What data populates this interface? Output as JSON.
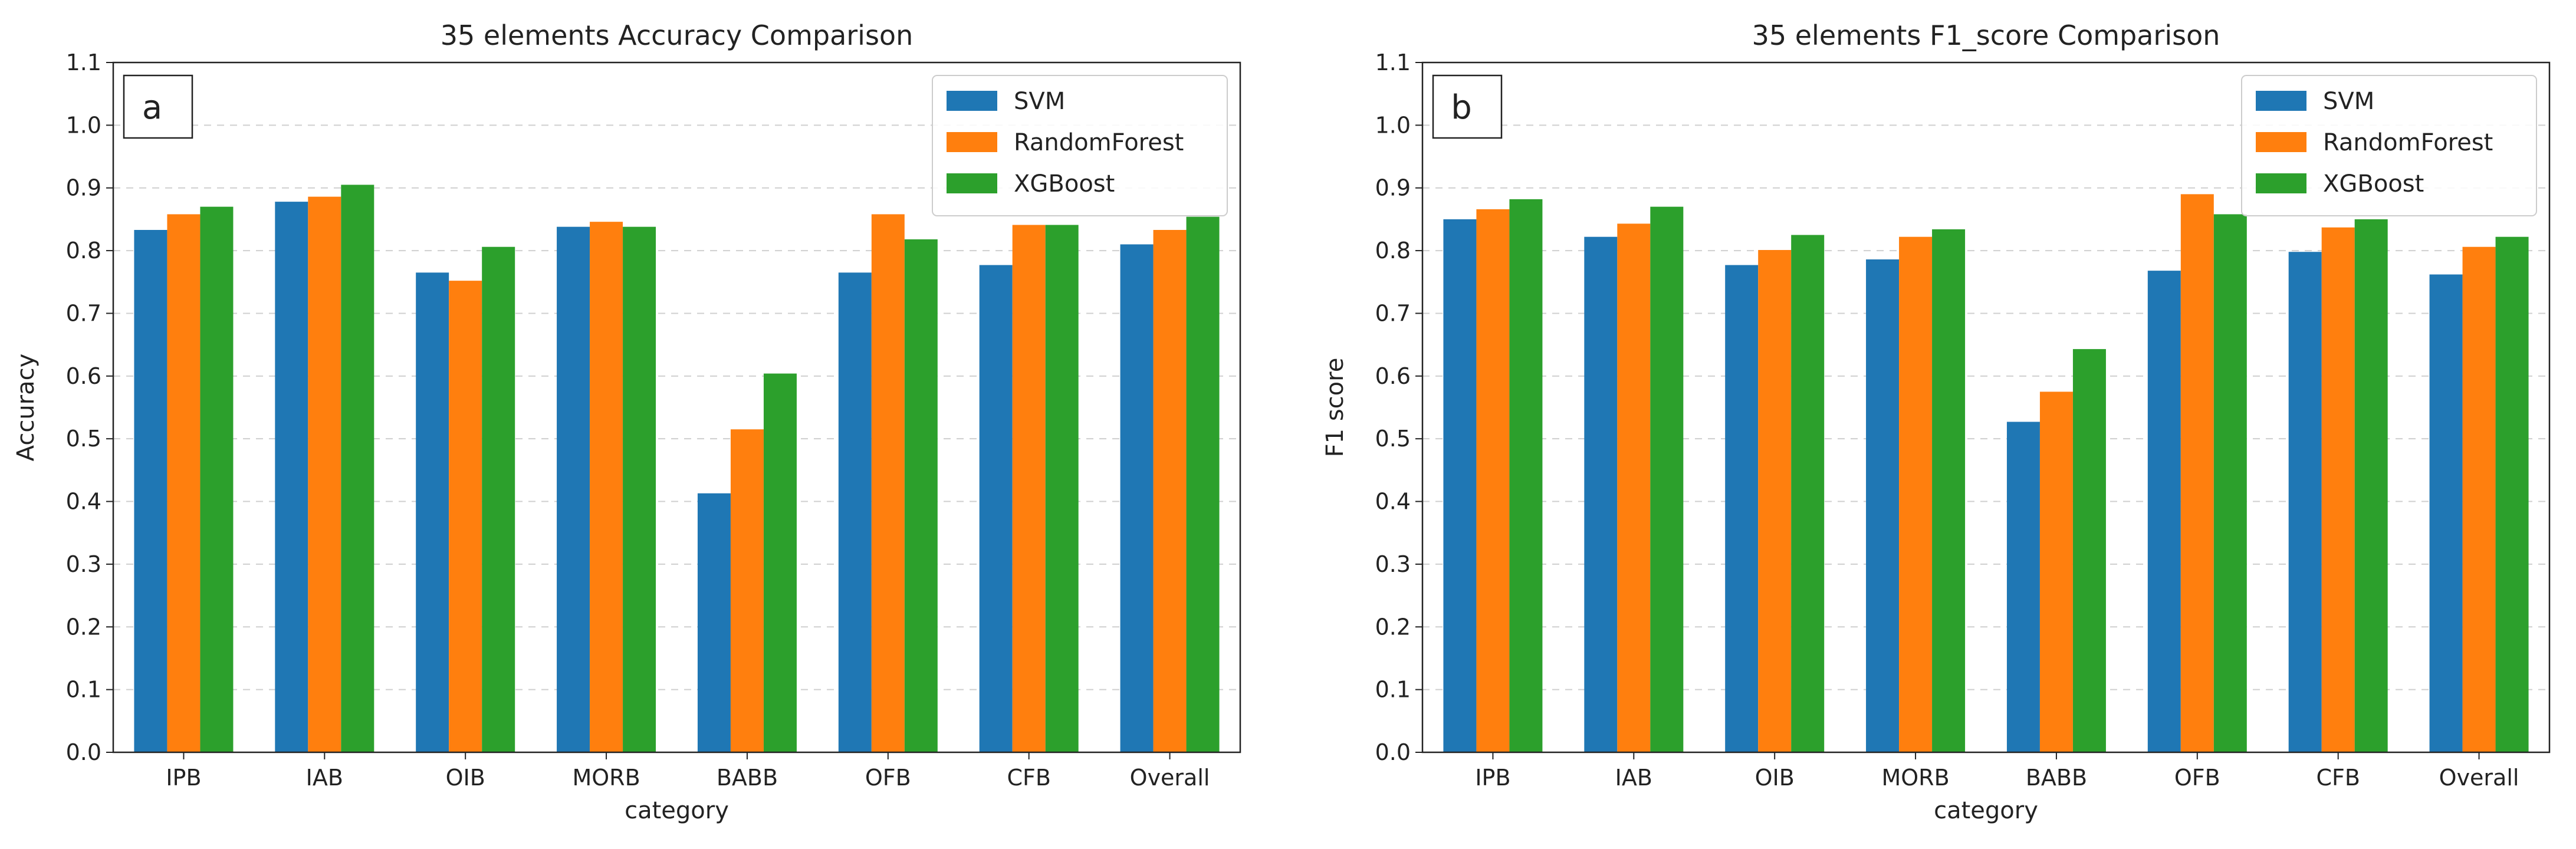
{
  "colors": {
    "SVM": "#1f77b4",
    "RandomForest": "#ff7f0e",
    "XGBoost": "#2ca02c"
  },
  "chart_data": [
    {
      "type": "bar",
      "panel_label": "a",
      "title": "35 elements Accuracy Comparison",
      "xlabel": "category",
      "ylabel": "Accuracy",
      "ylim": [
        0,
        1.1
      ],
      "yticks": [
        "0.0",
        "0.1",
        "0.2",
        "0.3",
        "0.4",
        "0.5",
        "0.6",
        "0.7",
        "0.8",
        "0.9",
        "1.0",
        "1.1"
      ],
      "grid": "horizontal dashed",
      "legend_position": "top-right",
      "categories": [
        "IPB",
        "IAB",
        "OIB",
        "MORB",
        "BABB",
        "OFB",
        "CFB",
        "Overall"
      ],
      "series": [
        {
          "name": "SVM",
          "values": [
            0.833,
            0.878,
            0.765,
            0.838,
            0.413,
            0.765,
            0.777,
            0.81
          ]
        },
        {
          "name": "RandomForest",
          "values": [
            0.858,
            0.886,
            0.752,
            0.846,
            0.515,
            0.858,
            0.841,
            0.833
          ]
        },
        {
          "name": "XGBoost",
          "values": [
            0.87,
            0.905,
            0.806,
            0.838,
            0.604,
            0.818,
            0.841,
            0.854
          ]
        }
      ]
    },
    {
      "type": "bar",
      "panel_label": "b",
      "title": "35 elements F1_score Comparison",
      "xlabel": "category",
      "ylabel": "F1 score",
      "ylim": [
        0,
        1.1
      ],
      "yticks": [
        "0.0",
        "0.1",
        "0.2",
        "0.3",
        "0.4",
        "0.5",
        "0.6",
        "0.7",
        "0.8",
        "0.9",
        "1.0",
        "1.1"
      ],
      "grid": "horizontal dashed",
      "legend_position": "top-right",
      "categories": [
        "IPB",
        "IAB",
        "OIB",
        "MORB",
        "BABB",
        "OFB",
        "CFB",
        "Overall"
      ],
      "series": [
        {
          "name": "SVM",
          "values": [
            0.85,
            0.822,
            0.777,
            0.786,
            0.527,
            0.768,
            0.798,
            0.762
          ]
        },
        {
          "name": "RandomForest",
          "values": [
            0.866,
            0.843,
            0.801,
            0.822,
            0.575,
            0.89,
            0.837,
            0.806
          ]
        },
        {
          "name": "XGBoost",
          "values": [
            0.882,
            0.87,
            0.825,
            0.834,
            0.643,
            0.858,
            0.85,
            0.822
          ]
        }
      ]
    }
  ]
}
